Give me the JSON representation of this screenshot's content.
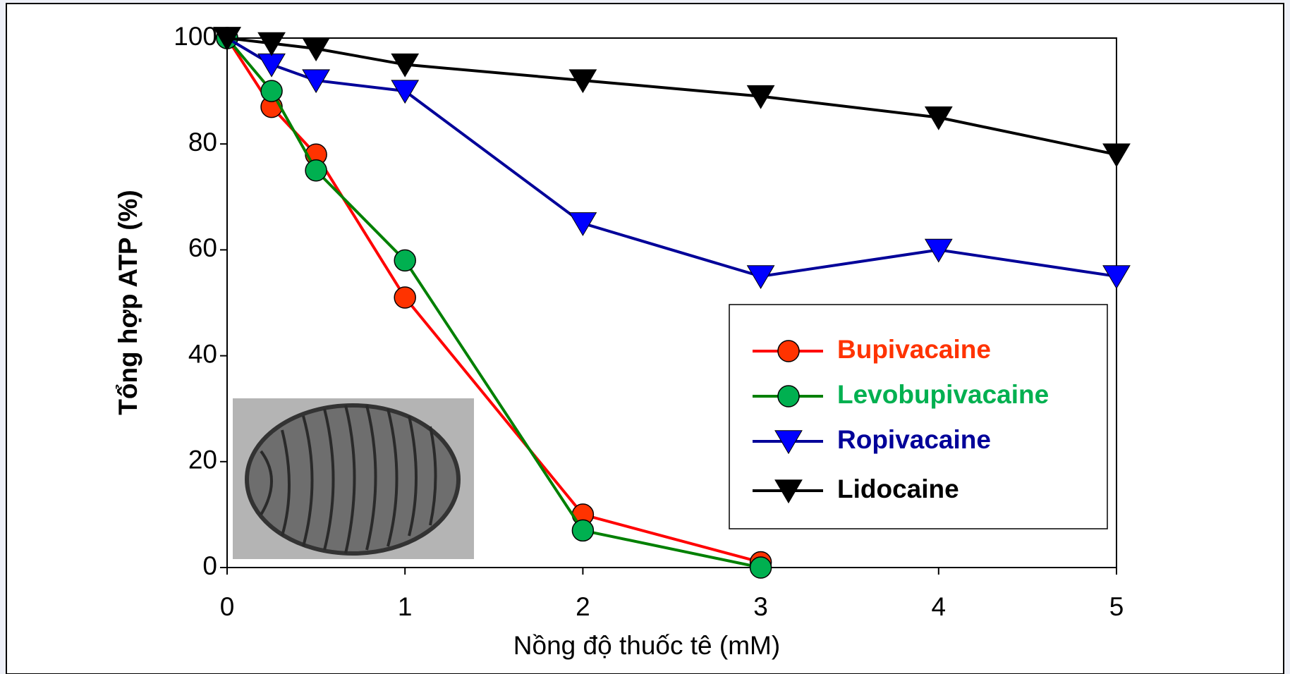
{
  "chart_data": {
    "type": "line",
    "xlabel": "Nồng độ thuốc tê (mM)",
    "ylabel": "Tổng hợp ATP (%)",
    "x": [
      0,
      0.25,
      0.5,
      1,
      2,
      3,
      4,
      5
    ],
    "series": [
      {
        "name": "Bupivacaine",
        "color": "#ff0000",
        "marker": "circle",
        "marker_color": "#ff3300",
        "values": [
          100,
          87,
          78,
          51,
          10,
          1,
          null,
          null
        ]
      },
      {
        "name": "Levobupivacaine",
        "color": "#008000",
        "marker": "circle",
        "marker_color": "#00b050",
        "values": [
          100,
          90,
          75,
          58,
          7,
          0,
          null,
          null
        ]
      },
      {
        "name": "Ropivacaine",
        "color": "#000099",
        "marker": "triangle-down",
        "marker_color": "#0000ff",
        "values": [
          100,
          95,
          92,
          90,
          65,
          55,
          60,
          55
        ]
      },
      {
        "name": "Lidocaine",
        "color": "#000000",
        "marker": "triangle-down",
        "marker_color": "#000000",
        "values": [
          100,
          99,
          98,
          95,
          92,
          89,
          85,
          78
        ]
      }
    ],
    "legend_text_colors": [
      "#ff3300",
      "#00b050",
      "#000099",
      "#000000"
    ],
    "xlim": [
      0,
      5
    ],
    "xticks": [
      0,
      1,
      2,
      3,
      4,
      5
    ],
    "ylim": [
      0,
      100
    ],
    "yticks": [
      0,
      20,
      40,
      60,
      80,
      100
    ],
    "grid": false,
    "legend": "lower right"
  }
}
